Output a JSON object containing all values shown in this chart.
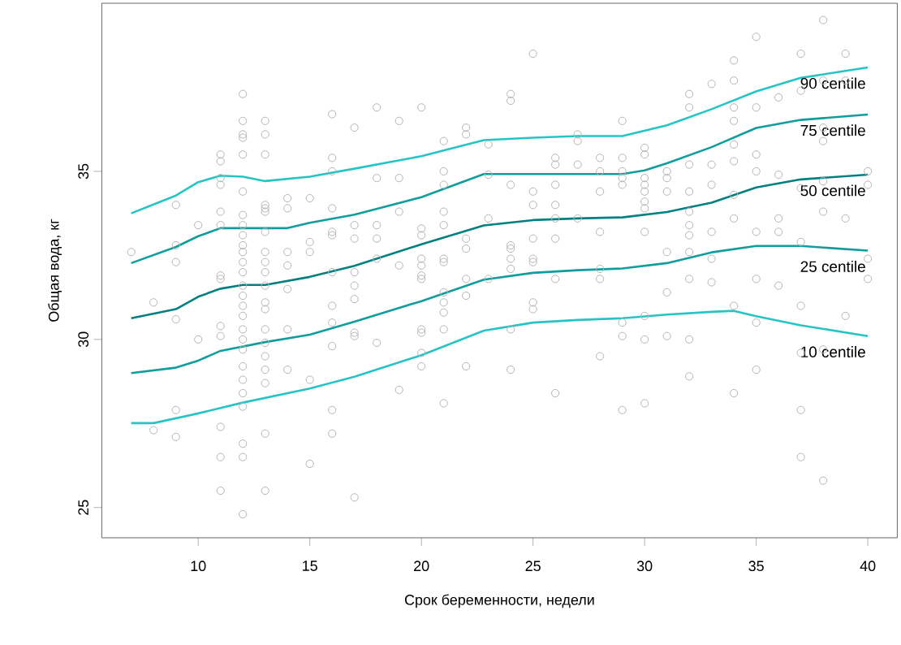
{
  "chart_data": {
    "type": "scatter",
    "xlabel": "Срок беременности, недели",
    "ylabel": "Общая вода, кг",
    "xlim": [
      5.68,
      41.32
    ],
    "ylim": [
      24.1,
      40.0
    ],
    "xticks": [
      10,
      15,
      20,
      25,
      30,
      35,
      40
    ],
    "yticks": [
      25,
      30,
      35
    ],
    "series": [
      {
        "color": "#b4b4b4",
        "marker": "circle",
        "x": [
          7,
          8,
          8,
          9,
          9,
          9,
          9,
          9,
          9,
          10,
          10,
          11,
          11,
          11,
          11,
          11,
          11,
          11,
          11,
          11,
          11,
          11,
          11,
          11,
          12,
          12,
          12,
          12,
          12,
          12,
          12,
          12,
          12,
          12,
          12,
          12,
          12,
          12,
          12,
          12,
          12,
          12,
          12,
          12,
          12,
          12,
          12,
          12,
          12,
          12,
          12,
          13,
          13,
          13,
          13,
          13,
          13,
          13,
          13,
          13,
          13,
          13,
          13,
          13,
          13,
          13,
          13,
          13,
          13,
          13,
          13,
          14,
          14,
          14,
          14,
          14,
          14,
          14,
          15,
          15,
          15,
          15,
          15,
          16,
          16,
          16,
          16,
          16,
          16,
          16,
          16,
          16,
          16,
          16,
          16,
          17,
          17,
          17,
          17,
          17,
          17,
          17,
          17,
          17,
          18,
          18,
          18,
          18,
          18,
          18,
          19,
          19,
          19,
          19,
          19,
          20,
          20,
          20,
          20,
          20,
          20,
          20,
          20,
          20,
          20,
          20,
          21,
          21,
          21,
          21,
          21,
          21,
          21,
          21,
          21,
          21,
          21,
          21,
          22,
          22,
          22,
          22,
          22,
          22,
          22,
          23,
          23,
          23,
          23,
          24,
          24,
          24,
          24,
          24,
          24,
          24,
          24,
          24,
          25,
          25,
          25,
          25,
          25,
          25,
          25,
          25,
          26,
          26,
          26,
          26,
          26,
          26,
          26,
          26,
          27,
          27,
          27,
          27,
          28,
          28,
          28,
          28,
          28,
          28,
          28,
          29,
          29,
          29,
          29,
          29,
          29,
          29,
          29,
          30,
          30,
          30,
          30,
          30,
          30,
          30,
          30,
          30,
          30,
          30,
          31,
          31,
          31,
          31,
          31,
          31,
          32,
          32,
          32,
          32,
          32,
          32,
          32,
          32,
          32,
          32,
          32,
          33,
          33,
          33,
          33,
          33,
          33,
          34,
          34,
          34,
          34,
          34,
          34,
          34,
          34,
          34,
          34,
          35,
          35,
          35,
          35,
          35,
          35,
          35,
          35,
          36,
          36,
          36,
          36,
          36,
          37,
          37,
          37,
          37,
          37,
          37,
          37,
          37,
          38,
          38,
          38,
          38,
          38,
          38,
          38,
          38,
          39,
          39,
          39,
          39,
          40,
          40,
          40,
          40
        ],
        "values": [
          32.6,
          31.1,
          27.3,
          34.0,
          32.8,
          32.3,
          30.6,
          27.9,
          27.1,
          33.4,
          30.0,
          35.5,
          35.3,
          34.8,
          34.6,
          33.8,
          33.4,
          31.9,
          31.8,
          30.4,
          30.1,
          27.4,
          26.5,
          25.5,
          37.3,
          36.5,
          36.1,
          36.0,
          35.5,
          34.4,
          33.7,
          33.4,
          33.1,
          32.8,
          32.6,
          32.3,
          32.0,
          31.6,
          31.3,
          31.0,
          30.7,
          30.3,
          30.0,
          29.7,
          29.2,
          28.8,
          28.4,
          28.0,
          26.9,
          26.5,
          24.8,
          36.5,
          36.1,
          35.5,
          34.0,
          33.9,
          33.8,
          33.2,
          32.6,
          32.3,
          32.0,
          31.6,
          31.1,
          30.9,
          30.3,
          29.9,
          29.5,
          29.1,
          28.7,
          27.2,
          25.5,
          34.2,
          33.9,
          32.6,
          32.2,
          31.5,
          30.3,
          29.1,
          34.2,
          32.9,
          32.6,
          28.8,
          26.3,
          36.7,
          35.4,
          35.0,
          33.9,
          33.2,
          33.1,
          32.0,
          31.0,
          30.5,
          29.8,
          27.9,
          27.2,
          36.3,
          33.4,
          33.0,
          32.0,
          31.6,
          31.2,
          30.2,
          30.1,
          25.3,
          36.9,
          34.8,
          33.4,
          33.0,
          32.4,
          29.9,
          36.5,
          34.8,
          33.8,
          32.2,
          28.5,
          36.9,
          33.3,
          33.1,
          32.4,
          32.2,
          31.9,
          31.8,
          30.3,
          30.2,
          29.6,
          29.2,
          35.9,
          35.0,
          34.6,
          33.8,
          33.4,
          32.4,
          32.3,
          31.4,
          31.1,
          30.8,
          30.3,
          28.1,
          36.3,
          36.1,
          33.0,
          32.7,
          31.8,
          31.3,
          29.2,
          35.8,
          34.9,
          33.6,
          31.8,
          37.3,
          37.1,
          34.6,
          32.8,
          32.7,
          32.4,
          32.1,
          30.3,
          29.1,
          38.5,
          34.4,
          34.0,
          33.0,
          32.4,
          32.3,
          31.1,
          30.9,
          35.4,
          35.2,
          34.6,
          34.0,
          33.6,
          33.0,
          31.8,
          28.4,
          36.1,
          35.9,
          35.2,
          33.6,
          35.4,
          35.0,
          34.4,
          33.2,
          32.1,
          31.8,
          29.5,
          36.5,
          35.4,
          35.0,
          34.8,
          34.6,
          30.5,
          30.1,
          27.9,
          35.7,
          35.5,
          34.8,
          34.6,
          34.4,
          34.1,
          33.9,
          33.2,
          30.7,
          30.0,
          28.1,
          35.0,
          34.8,
          34.4,
          32.6,
          31.4,
          30.1,
          37.3,
          36.9,
          35.2,
          34.4,
          33.8,
          33.4,
          33.1,
          32.6,
          31.8,
          30.0,
          28.9,
          37.6,
          35.2,
          34.6,
          33.2,
          32.4,
          31.7,
          38.3,
          37.7,
          36.9,
          36.5,
          35.8,
          35.3,
          34.3,
          33.6,
          31.0,
          28.4,
          39.0,
          36.9,
          35.5,
          35.0,
          33.2,
          31.8,
          30.5,
          29.1,
          37.2,
          34.9,
          33.6,
          33.2,
          31.6,
          38.5,
          37.4,
          34.5,
          32.9,
          31.0,
          29.6,
          27.9,
          26.5,
          39.5,
          37.7,
          36.3,
          35.9,
          34.7,
          33.8,
          29.7,
          25.8,
          38.5,
          37.7,
          33.6,
          30.7,
          35.0,
          34.6,
          32.4,
          31.8
        ]
      },
      {
        "type": "line",
        "name": "90 centile",
        "color": "#26c4c4",
        "marker": "none",
        "x": [
          7,
          9,
          10,
          11,
          12,
          13,
          15,
          17,
          20,
          22.8,
          25,
          27,
          29,
          31,
          33,
          35,
          37,
          40
        ],
        "values": [
          33.75,
          34.28,
          34.68,
          34.87,
          34.84,
          34.71,
          34.84,
          35.08,
          35.45,
          35.93,
          36.0,
          36.05,
          36.05,
          36.37,
          36.85,
          37.38,
          37.78,
          38.09
        ]
      },
      {
        "type": "line",
        "name": "75 centile",
        "color": "#0f9d9d",
        "marker": "none",
        "x": [
          7,
          9,
          10,
          11,
          13,
          14,
          15,
          17,
          20,
          22.8,
          25,
          27,
          29,
          30,
          31,
          33,
          35,
          37,
          40
        ],
        "values": [
          32.27,
          32.75,
          33.07,
          33.31,
          33.31,
          33.31,
          33.47,
          33.71,
          34.23,
          34.92,
          34.92,
          34.92,
          34.92,
          35.03,
          35.24,
          35.72,
          36.29,
          36.53,
          36.69
        ]
      },
      {
        "type": "line",
        "name": "50 centile",
        "color": "#008080",
        "marker": "none",
        "x": [
          7,
          9,
          10,
          11,
          12,
          13,
          15,
          17,
          20,
          22.8,
          25,
          27,
          29,
          31,
          33,
          35,
          37,
          40
        ],
        "values": [
          30.63,
          30.9,
          31.27,
          31.51,
          31.62,
          31.62,
          31.86,
          32.19,
          32.83,
          33.39,
          33.55,
          33.6,
          33.63,
          33.79,
          34.07,
          34.52,
          34.76,
          34.9
        ]
      },
      {
        "type": "line",
        "name": "25 centile",
        "color": "#0f9d9d",
        "marker": "none",
        "x": [
          7,
          9,
          10,
          11,
          13,
          15,
          17,
          20,
          22.8,
          25,
          27,
          29,
          31,
          33,
          35,
          37,
          40
        ],
        "values": [
          29.0,
          29.16,
          29.37,
          29.66,
          29.92,
          30.14,
          30.53,
          31.14,
          31.78,
          31.98,
          32.06,
          32.11,
          32.27,
          32.59,
          32.78,
          32.78,
          32.64
        ]
      },
      {
        "type": "line",
        "name": "10 centile",
        "color": "#26c4c4",
        "marker": "none",
        "x": [
          7,
          8,
          10,
          12,
          15,
          17,
          20,
          22.8,
          25,
          27,
          29,
          31,
          33,
          34,
          35,
          37,
          40
        ],
        "values": [
          27.51,
          27.51,
          27.8,
          28.12,
          28.54,
          28.89,
          29.53,
          30.26,
          30.5,
          30.58,
          30.63,
          30.74,
          30.82,
          30.85,
          30.69,
          30.42,
          30.1
        ]
      }
    ]
  }
}
